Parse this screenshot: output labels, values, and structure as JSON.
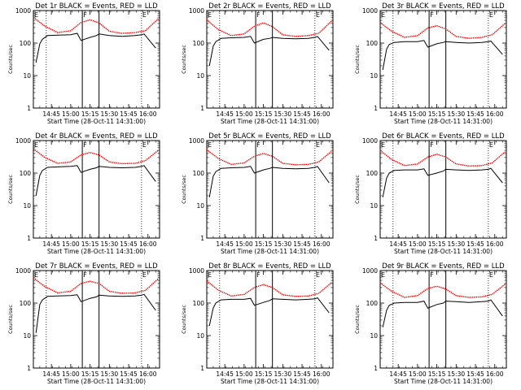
{
  "figure": {
    "background": "#ffffff",
    "events_color": "#000000",
    "lld_color": "#ff0000"
  },
  "chart_data": [
    {
      "type": "line",
      "title": "Det 1r BLACK = Events, RED = LLD",
      "xlabel": "Start Time (28-Oct-11 14:31:00)",
      "ylabel": "Counts/sec",
      "yscale": "log",
      "ylim": [
        1,
        1000
      ],
      "ytick_labels": [
        "1",
        "10",
        "100",
        "1000"
      ],
      "xlim_seconds_from_start": [
        0,
        5880
      ],
      "xtick_labels": [
        "14:45",
        "15:00",
        "15:15",
        "15:30",
        "15:45",
        "16:00"
      ],
      "markers": [
        {
          "label": "E",
          "time": "14:31"
        },
        {
          "label": "F",
          "time": "15:09"
        },
        {
          "label": "E",
          "time": "15:55"
        }
      ],
      "series": [
        {
          "name": "LLD",
          "color": "#ff0000",
          "x": [
            "14:31",
            "14:40",
            "14:50",
            "15:00",
            "15:08",
            "15:15",
            "15:22",
            "15:30",
            "15:40",
            "15:50",
            "15:58",
            "16:08"
          ],
          "y": [
            620,
            330,
            210,
            240,
            430,
            520,
            420,
            230,
            200,
            210,
            240,
            560
          ]
        },
        {
          "name": "Events",
          "color": "#000000",
          "x": [
            "14:33",
            "14:36",
            "14:38",
            "14:42",
            "14:50",
            "15:00",
            "15:05",
            "15:08",
            "15:15",
            "15:20",
            "15:22",
            "15:30",
            "15:40",
            "15:50",
            "15:55",
            "15:57",
            "16:06"
          ],
          "y": [
            25,
            95,
            130,
            170,
            175,
            180,
            200,
            120,
            150,
            170,
            190,
            170,
            160,
            170,
            180,
            190,
            70
          ]
        }
      ]
    },
    {
      "type": "line",
      "title": "Det 2r BLACK = Events, RED = LLD",
      "xlabel": "Start Time (28-Oct-11 14:31:00)",
      "ylabel": "Counts/sec",
      "yscale": "log",
      "ylim": [
        1,
        1000
      ],
      "ytick_labels": [
        "1",
        "10",
        "100",
        "1000"
      ],
      "xlim_seconds_from_start": [
        0,
        5880
      ],
      "xtick_labels": [
        "14:45",
        "15:00",
        "15:15",
        "15:30",
        "15:45",
        "16:00"
      ],
      "markers": [
        {
          "label": "E",
          "time": "14:31"
        },
        {
          "label": "F",
          "time": "15:09"
        },
        {
          "label": "E",
          "time": "15:55"
        }
      ],
      "series": [
        {
          "name": "LLD",
          "color": "#ff0000",
          "x": [
            "14:31",
            "14:40",
            "14:50",
            "15:00",
            "15:08",
            "15:15",
            "15:22",
            "15:30",
            "15:40",
            "15:50",
            "15:58",
            "16:08"
          ],
          "y": [
            520,
            260,
            170,
            190,
            330,
            420,
            320,
            180,
            160,
            170,
            200,
            480
          ]
        },
        {
          "name": "Events",
          "color": "#000000",
          "x": [
            "14:33",
            "14:36",
            "14:38",
            "14:42",
            "14:50",
            "15:00",
            "15:05",
            "15:08",
            "15:15",
            "15:20",
            "15:22",
            "15:30",
            "15:40",
            "15:50",
            "15:55",
            "15:57",
            "16:06"
          ],
          "y": [
            20,
            80,
            110,
            140,
            145,
            150,
            160,
            100,
            130,
            140,
            150,
            140,
            135,
            140,
            150,
            160,
            60
          ]
        }
      ]
    },
    {
      "type": "line",
      "title": "Det 3r BLACK = Events, RED = LLD",
      "xlabel": "Start Time (28-Oct-11 14:31:00)",
      "ylabel": "Counts/sec",
      "yscale": "log",
      "ylim": [
        1,
        1000
      ],
      "ytick_labels": [
        "1",
        "10",
        "100",
        "1000"
      ],
      "xlim_seconds_from_start": [
        0,
        5880
      ],
      "xtick_labels": [
        "14:45",
        "15:00",
        "15:15",
        "15:30",
        "15:45",
        "16:00"
      ],
      "markers": [
        {
          "label": "E",
          "time": "14:31"
        },
        {
          "label": "F",
          "time": "15:09"
        },
        {
          "label": "E",
          "time": "15:55"
        }
      ],
      "series": [
        {
          "name": "LLD",
          "color": "#ff0000",
          "x": [
            "14:31",
            "14:40",
            "14:50",
            "15:00",
            "15:08",
            "15:15",
            "15:22",
            "15:30",
            "15:40",
            "15:50",
            "15:58",
            "16:08"
          ],
          "y": [
            430,
            230,
            150,
            170,
            290,
            340,
            270,
            160,
            140,
            150,
            180,
            400
          ]
        },
        {
          "name": "Events",
          "color": "#000000",
          "x": [
            "14:33",
            "14:36",
            "14:38",
            "14:42",
            "14:50",
            "15:00",
            "15:05",
            "15:08",
            "15:15",
            "15:20",
            "15:22",
            "15:30",
            "15:40",
            "15:50",
            "15:55",
            "15:57",
            "16:06"
          ],
          "y": [
            15,
            65,
            90,
            105,
            110,
            110,
            120,
            75,
            95,
            105,
            110,
            105,
            100,
            105,
            110,
            115,
            45
          ]
        }
      ]
    },
    {
      "type": "line",
      "title": "Det 4r BLACK = Events, RED = LLD",
      "xlabel": "Start Time (28-Oct-11 14:31:00)",
      "ylabel": "Counts/sec",
      "yscale": "log",
      "ylim": [
        1,
        1000
      ],
      "ytick_labels": [
        "1",
        "10",
        "100",
        "1000"
      ],
      "xlim_seconds_from_start": [
        0,
        5880
      ],
      "xtick_labels": [
        "14:45",
        "15:00",
        "15:15",
        "15:30",
        "15:45",
        "16:00"
      ],
      "markers": [
        {
          "label": "E",
          "time": "14:31"
        },
        {
          "label": "F",
          "time": "15:09"
        },
        {
          "label": "E",
          "time": "15:55"
        }
      ],
      "series": [
        {
          "name": "LLD",
          "color": "#ff0000",
          "x": [
            "14:31",
            "14:40",
            "14:50",
            "15:00",
            "15:08",
            "15:15",
            "15:22",
            "15:30",
            "15:40",
            "15:50",
            "15:58",
            "16:08"
          ],
          "y": [
            560,
            300,
            200,
            220,
            360,
            430,
            360,
            220,
            195,
            200,
            240,
            500
          ]
        },
        {
          "name": "Events",
          "color": "#000000",
          "x": [
            "14:33",
            "14:36",
            "14:38",
            "14:42",
            "14:50",
            "15:00",
            "15:05",
            "15:08",
            "15:15",
            "15:20",
            "15:22",
            "15:30",
            "15:40",
            "15:50",
            "15:55",
            "15:57",
            "16:06"
          ],
          "y": [
            20,
            85,
            120,
            150,
            155,
            160,
            170,
            105,
            130,
            145,
            160,
            150,
            145,
            150,
            160,
            170,
            55
          ]
        }
      ]
    },
    {
      "type": "line",
      "title": "Det 5r BLACK = Events, RED = LLD",
      "xlabel": "Start Time (28-Oct-11 14:31:00)",
      "ylabel": "Counts/sec",
      "yscale": "log",
      "ylim": [
        1,
        1000
      ],
      "ytick_labels": [
        "1",
        "10",
        "100",
        "1000"
      ],
      "xlim_seconds_from_start": [
        0,
        5880
      ],
      "xtick_labels": [
        "14:45",
        "15:00",
        "15:15",
        "15:30",
        "15:45",
        "16:00"
      ],
      "markers": [
        {
          "label": "E",
          "time": "14:31"
        },
        {
          "label": "F",
          "time": "15:09"
        },
        {
          "label": "E",
          "time": "15:55"
        }
      ],
      "series": [
        {
          "name": "LLD",
          "color": "#ff0000",
          "x": [
            "14:31",
            "14:40",
            "14:50",
            "15:00",
            "15:08",
            "15:15",
            "15:22",
            "15:30",
            "15:40",
            "15:50",
            "15:58",
            "16:08"
          ],
          "y": [
            520,
            280,
            185,
            205,
            330,
            400,
            330,
            200,
            180,
            185,
            220,
            470
          ]
        },
        {
          "name": "Events",
          "color": "#000000",
          "x": [
            "14:33",
            "14:36",
            "14:38",
            "14:42",
            "14:50",
            "15:00",
            "15:05",
            "15:08",
            "15:15",
            "15:20",
            "15:22",
            "15:30",
            "15:40",
            "15:50",
            "15:55",
            "15:57",
            "16:06"
          ],
          "y": [
            18,
            80,
            110,
            140,
            145,
            150,
            160,
            100,
            125,
            140,
            150,
            140,
            135,
            140,
            150,
            160,
            50
          ]
        }
      ]
    },
    {
      "type": "line",
      "title": "Det 6r BLACK = Events, RED = LLD",
      "xlabel": "Start Time (28-Oct-11 14:31:00)",
      "ylabel": "Counts/sec",
      "yscale": "log",
      "ylim": [
        1,
        1000
      ],
      "ytick_labels": [
        "1",
        "10",
        "100",
        "1000"
      ],
      "xlim_seconds_from_start": [
        0,
        5880
      ],
      "xtick_labels": [
        "14:45",
        "15:00",
        "15:15",
        "15:30",
        "15:45",
        "16:00"
      ],
      "markers": [
        {
          "label": "E",
          "time": "14:31"
        },
        {
          "label": "F",
          "time": "15:09"
        },
        {
          "label": "E",
          "time": "15:55"
        }
      ],
      "series": [
        {
          "name": "LLD",
          "color": "#ff0000",
          "x": [
            "14:31",
            "14:40",
            "14:50",
            "15:00",
            "15:08",
            "15:15",
            "15:22",
            "15:30",
            "15:40",
            "15:50",
            "15:58",
            "16:08"
          ],
          "y": [
            500,
            260,
            170,
            190,
            310,
            380,
            310,
            190,
            165,
            170,
            205,
            450
          ]
        },
        {
          "name": "Events",
          "color": "#000000",
          "x": [
            "14:33",
            "14:36",
            "14:38",
            "14:42",
            "14:50",
            "15:00",
            "15:05",
            "15:08",
            "15:15",
            "15:20",
            "15:22",
            "15:30",
            "15:40",
            "15:50",
            "15:55",
            "15:57",
            "16:06"
          ],
          "y": [
            18,
            70,
            100,
            120,
            125,
            125,
            135,
            85,
            100,
            115,
            130,
            125,
            120,
            125,
            130,
            140,
            50
          ]
        }
      ]
    },
    {
      "type": "line",
      "title": "Det 7r BLACK = Events, RED = LLD",
      "xlabel": "Start Time (28-Oct-11 14:31:00)",
      "ylabel": "Counts/sec",
      "yscale": "log",
      "ylim": [
        1,
        1000
      ],
      "ytick_labels": [
        "1",
        "10",
        "100",
        "1000"
      ],
      "xlim_seconds_from_start": [
        0,
        5880
      ],
      "xtick_labels": [
        "14:45",
        "15:00",
        "15:15",
        "15:30",
        "15:45",
        "16:00"
      ],
      "markers": [
        {
          "label": "E",
          "time": "14:31"
        },
        {
          "label": "F",
          "time": "15:09"
        },
        {
          "label": "E",
          "time": "15:55"
        }
      ],
      "series": [
        {
          "name": "LLD",
          "color": "#ff0000",
          "x": [
            "14:31",
            "14:40",
            "14:50",
            "15:00",
            "15:08",
            "15:15",
            "15:22",
            "15:30",
            "15:40",
            "15:50",
            "15:58",
            "16:08"
          ],
          "y": [
            600,
            320,
            205,
            230,
            400,
            470,
            400,
            230,
            200,
            205,
            245,
            560
          ]
        },
        {
          "name": "Events",
          "color": "#000000",
          "x": [
            "14:33",
            "14:36",
            "14:38",
            "14:42",
            "14:50",
            "15:00",
            "15:05",
            "15:08",
            "15:15",
            "15:20",
            "15:22",
            "15:30",
            "15:40",
            "15:50",
            "15:55",
            "15:57",
            "16:06"
          ],
          "y": [
            12,
            90,
            125,
            160,
            165,
            170,
            180,
            110,
            140,
            155,
            175,
            165,
            160,
            165,
            175,
            185,
            60
          ]
        }
      ]
    },
    {
      "type": "line",
      "title": "Det 8r BLACK = Events, RED = LLD",
      "xlabel": "Start Time (28-Oct-11 14:31:00)",
      "ylabel": "Counts/sec",
      "yscale": "log",
      "ylim": [
        1,
        1000
      ],
      "ytick_labels": [
        "1",
        "10",
        "100",
        "1000"
      ],
      "xlim_seconds_from_start": [
        0,
        5880
      ],
      "xtick_labels": [
        "14:45",
        "15:00",
        "15:15",
        "15:30",
        "15:45",
        "16:00"
      ],
      "markers": [
        {
          "label": "E",
          "time": "14:31"
        },
        {
          "label": "F",
          "time": "15:09"
        },
        {
          "label": "E",
          "time": "15:55"
        }
      ],
      "series": [
        {
          "name": "LLD",
          "color": "#ff0000",
          "x": [
            "14:31",
            "14:40",
            "14:50",
            "15:00",
            "15:08",
            "15:15",
            "15:22",
            "15:30",
            "15:40",
            "15:50",
            "15:58",
            "16:08"
          ],
          "y": [
            480,
            250,
            165,
            185,
            300,
            370,
            300,
            180,
            160,
            165,
            200,
            430
          ]
        },
        {
          "name": "Events",
          "color": "#000000",
          "x": [
            "14:33",
            "14:36",
            "14:38",
            "14:42",
            "14:50",
            "15:00",
            "15:05",
            "15:08",
            "15:15",
            "15:20",
            "15:22",
            "15:30",
            "15:40",
            "15:50",
            "15:55",
            "15:57",
            "16:06"
          ],
          "y": [
            20,
            70,
            100,
            125,
            130,
            130,
            140,
            85,
            105,
            120,
            135,
            130,
            125,
            130,
            135,
            145,
            50
          ]
        }
      ]
    },
    {
      "type": "line",
      "title": "Det 9r BLACK = Events, RED = LLD",
      "xlabel": "Start Time (28-Oct-11 14:31:00)",
      "ylabel": "Counts/sec",
      "yscale": "log",
      "ylim": [
        1,
        1000
      ],
      "ytick_labels": [
        "1",
        "10",
        "100",
        "1000"
      ],
      "xlim_seconds_from_start": [
        0,
        5880
      ],
      "xtick_labels": [
        "14:45",
        "15:00",
        "15:15",
        "15:30",
        "15:45",
        "16:00"
      ],
      "markers": [
        {
          "label": "E",
          "time": "14:31"
        },
        {
          "label": "F",
          "time": "15:09"
        },
        {
          "label": "E",
          "time": "15:55"
        }
      ],
      "series": [
        {
          "name": "LLD",
          "color": "#ff0000",
          "x": [
            "14:31",
            "14:40",
            "14:50",
            "15:00",
            "15:08",
            "15:15",
            "15:22",
            "15:30",
            "15:40",
            "15:50",
            "15:58",
            "16:08"
          ],
          "y": [
            420,
            230,
            150,
            170,
            280,
            330,
            270,
            170,
            150,
            155,
            185,
            380
          ]
        },
        {
          "name": "Events",
          "color": "#000000",
          "x": [
            "14:33",
            "14:36",
            "14:38",
            "14:42",
            "14:50",
            "15:00",
            "15:05",
            "15:08",
            "15:15",
            "15:20",
            "15:22",
            "15:30",
            "15:40",
            "15:50",
            "15:55",
            "15:57",
            "16:06"
          ],
          "y": [
            18,
            60,
            85,
            100,
            105,
            105,
            115,
            70,
            90,
            100,
            115,
            110,
            105,
            110,
            115,
            125,
            40
          ]
        }
      ]
    }
  ]
}
